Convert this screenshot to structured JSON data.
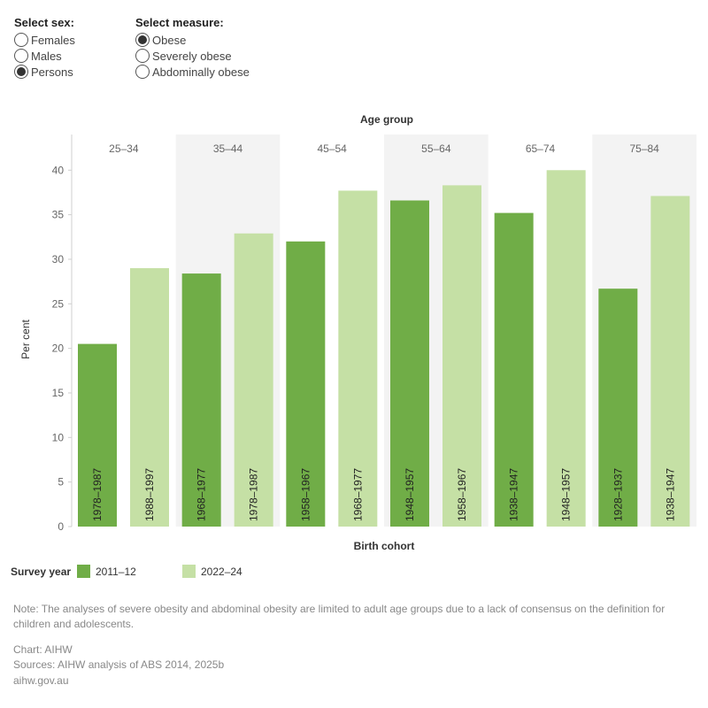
{
  "controls": {
    "sex": {
      "title": "Select sex:",
      "options": [
        {
          "label": "Females",
          "selected": false
        },
        {
          "label": "Males",
          "selected": false
        },
        {
          "label": "Persons",
          "selected": true
        }
      ]
    },
    "measure": {
      "title": "Select measure:",
      "options": [
        {
          "label": "Obese",
          "selected": true
        },
        {
          "label": "Severely obese",
          "selected": false
        },
        {
          "label": "Abdominally obese",
          "selected": false
        }
      ]
    }
  },
  "chart_data": {
    "type": "bar",
    "title": "Age group",
    "xlabel": "Birth cohort",
    "ylabel": "Per cent",
    "ylim": [
      0,
      44
    ],
    "yticks": [
      0,
      5,
      10,
      15,
      20,
      25,
      30,
      35,
      40
    ],
    "grid": false,
    "groups": [
      {
        "label": "25–34",
        "bars": [
          {
            "series": "2011–12",
            "cohort": "1978–1987",
            "value": 20.5
          },
          {
            "series": "2022–24",
            "cohort": "1988–1997",
            "value": 29.0
          }
        ]
      },
      {
        "label": "35–44",
        "bars": [
          {
            "series": "2011–12",
            "cohort": "1968–1977",
            "value": 28.4
          },
          {
            "series": "2022–24",
            "cohort": "1978–1987",
            "value": 32.9
          }
        ]
      },
      {
        "label": "45–54",
        "bars": [
          {
            "series": "2011–12",
            "cohort": "1958–1967",
            "value": 32.0
          },
          {
            "series": "2022–24",
            "cohort": "1968–1977",
            "value": 37.7
          }
        ]
      },
      {
        "label": "55–64",
        "bars": [
          {
            "series": "2011–12",
            "cohort": "1948–1957",
            "value": 36.6
          },
          {
            "series": "2022–24",
            "cohort": "1958–1967",
            "value": 38.3
          }
        ]
      },
      {
        "label": "65–74",
        "bars": [
          {
            "series": "2011–12",
            "cohort": "1938–1947",
            "value": 35.2
          },
          {
            "series": "2022–24",
            "cohort": "1948–1957",
            "value": 40.0
          }
        ]
      },
      {
        "label": "75–84",
        "bars": [
          {
            "series": "2011–12",
            "cohort": "1928–1937",
            "value": 26.7
          },
          {
            "series": "2022–24",
            "cohort": "1938–1947",
            "value": 37.1
          }
        ]
      }
    ],
    "legend": {
      "title": "Survey year",
      "placement": "bottom-left",
      "items": [
        {
          "name": "2011–12",
          "color": "#70ad47"
        },
        {
          "name": "2022–24",
          "color": "#c5e0a5"
        }
      ]
    },
    "colors": {
      "2011–12": "#70ad47",
      "2022–24": "#c5e0a5",
      "band_shade": "#f3f3f3"
    }
  },
  "note": "Note: The analyses of severe obesity and abdominal obesity are limited to adult age groups due to a lack of consensus on the definition for children and adolescents.",
  "footer": {
    "chart": "Chart: AIHW",
    "sources": "Sources: AIHW analysis of ABS 2014, 2025b",
    "site": "aihw.gov.au"
  }
}
